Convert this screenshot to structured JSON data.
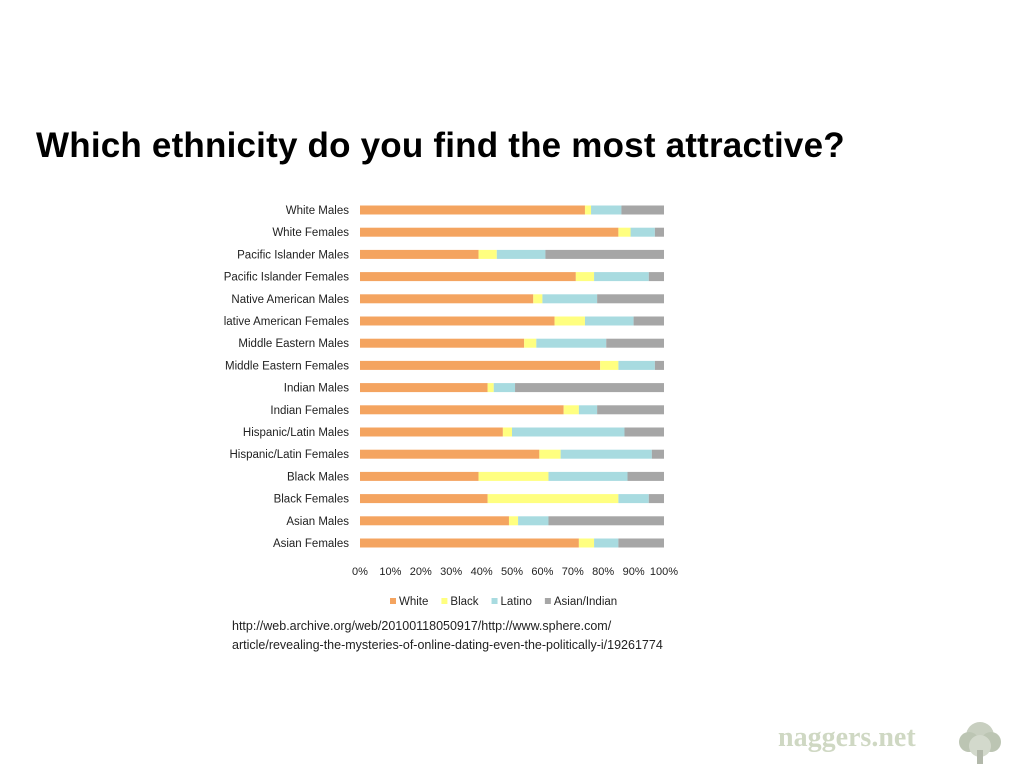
{
  "slide": {
    "title": "Which ethnicity do you find the most attractive?",
    "source_line1": "http://web.archive.org/web/20100118050917/http://www.sphere.com/",
    "source_line2": "article/revealing-the-mysteries-of-online-dating-even-the-politically-i/19261774",
    "watermark": "naggers.net"
  },
  "colors": {
    "White": "#f4a460",
    "Black": "#ffff80",
    "Latino": "#a8dbe0",
    "Asian/Indian": "#a6a6a6"
  },
  "chart_data": {
    "type": "bar",
    "orientation": "horizontal",
    "stacked": "percent",
    "categories": [
      "White Males",
      "White Females",
      "Pacific Islander Males",
      "Pacific Islander Females",
      "Native American Males",
      "lative American Females",
      "Middle Eastern Males",
      "Middle Eastern Females",
      "Indian Males",
      "Indian Females",
      "Hispanic/Latin Males",
      "Hispanic/Latin Females",
      "Black Males",
      "Black Females",
      "Asian Males",
      "Asian Females"
    ],
    "series": [
      {
        "name": "White",
        "values": [
          74,
          85,
          39,
          71,
          57,
          64,
          54,
          79,
          42,
          67,
          47,
          59,
          39,
          42,
          49,
          72
        ]
      },
      {
        "name": "Black",
        "values": [
          2,
          4,
          6,
          6,
          3,
          10,
          4,
          6,
          2,
          5,
          3,
          7,
          23,
          43,
          3,
          5
        ]
      },
      {
        "name": "Latino",
        "values": [
          10,
          8,
          16,
          18,
          18,
          16,
          23,
          12,
          7,
          6,
          37,
          30,
          26,
          10,
          10,
          8
        ]
      },
      {
        "name": "Asian/Indian",
        "values": [
          14,
          3,
          39,
          5,
          22,
          10,
          19,
          3,
          49,
          22,
          13,
          4,
          12,
          5,
          38,
          15
        ]
      }
    ],
    "xticks": [
      "0%",
      "10%",
      "20%",
      "30%",
      "40%",
      "50%",
      "60%",
      "70%",
      "80%",
      "90%",
      "100%"
    ],
    "xlim": [
      0,
      100
    ],
    "grid": false,
    "legend_position": "bottom"
  }
}
